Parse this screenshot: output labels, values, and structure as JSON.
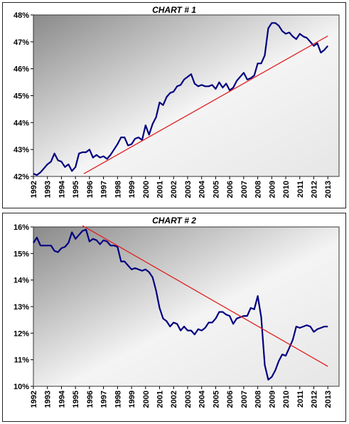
{
  "chart_data": [
    {
      "type": "line",
      "title": "CHART # 1",
      "x_ticks": [
        "1992",
        "1993",
        "1994",
        "1995",
        "1996",
        "1997",
        "1998",
        "1999",
        "2000",
        "2001",
        "2002",
        "2003",
        "2004",
        "2005",
        "2006",
        "2007",
        "2008",
        "2009",
        "2010",
        "2011",
        "2012",
        "2013"
      ],
      "y_ticks": [
        "42%",
        "43%",
        "44%",
        "45%",
        "46%",
        "47%",
        "48%"
      ],
      "ylim": [
        42,
        48
      ],
      "xlim": [
        1992,
        2013.8
      ],
      "grid": false,
      "colors": {
        "series": "#000080",
        "trend": "#e02020"
      },
      "series": [
        {
          "x": [
            1992.0,
            1992.25,
            1992.5,
            1992.75,
            1993.0,
            1993.25,
            1993.5,
            1993.75,
            1994.0,
            1994.25,
            1994.5,
            1994.75,
            1995.0,
            1995.25,
            1995.5,
            1995.75,
            1996.0,
            1996.25,
            1996.5,
            1996.75,
            1997.0,
            1997.25,
            1997.5,
            1997.75,
            1998.0,
            1998.25,
            1998.5,
            1998.75,
            1999.0,
            1999.25,
            1999.5,
            1999.75,
            2000.0,
            2000.25,
            2000.5,
            2000.75,
            2001.0,
            2001.25,
            2001.5,
            2001.75,
            2002.0,
            2002.25,
            2002.5,
            2002.75,
            2003.0,
            2003.25,
            2003.5,
            2003.75,
            2004.0,
            2004.25,
            2004.5,
            2004.75,
            2005.0,
            2005.25,
            2005.5,
            2005.75,
            2006.0,
            2006.25,
            2006.5,
            2006.75,
            2007.0,
            2007.25,
            2007.5,
            2007.75,
            2008.0,
            2008.25,
            2008.5,
            2008.75,
            2009.0,
            2009.25,
            2009.5,
            2009.75,
            2010.0,
            2010.25,
            2010.5,
            2010.75,
            2011.0,
            2011.25,
            2011.5,
            2011.75,
            2012.0,
            2012.25,
            2012.5,
            2012.75,
            2013.0
          ],
          "y": [
            42.1,
            42.05,
            42.15,
            42.3,
            42.45,
            42.55,
            42.85,
            42.6,
            42.55,
            42.35,
            42.45,
            42.2,
            42.35,
            42.85,
            42.9,
            42.9,
            43.0,
            42.7,
            42.8,
            42.7,
            42.75,
            42.65,
            42.8,
            43.0,
            43.2,
            43.45,
            43.45,
            43.15,
            43.2,
            43.4,
            43.45,
            43.35,
            43.9,
            43.55,
            43.95,
            44.2,
            44.75,
            44.65,
            44.95,
            45.1,
            45.15,
            45.35,
            45.4,
            45.6,
            45.7,
            45.8,
            45.45,
            45.35,
            45.4,
            45.35,
            45.35,
            45.4,
            45.25,
            45.5,
            45.3,
            45.45,
            45.2,
            45.3,
            45.55,
            45.7,
            45.85,
            45.6,
            45.65,
            45.75,
            46.2,
            46.2,
            46.5,
            47.5,
            47.7,
            47.7,
            47.6,
            47.4,
            47.3,
            47.35,
            47.2,
            47.1,
            47.3,
            47.2,
            47.15,
            47.0,
            46.85,
            46.95,
            46.6,
            46.7,
            46.85
          ]
        },
        {
          "x": [
            1995.6,
            2013.0
          ],
          "y": [
            42.1,
            47.22
          ]
        }
      ]
    },
    {
      "type": "line",
      "title": "CHART # 2",
      "x_ticks": [
        "1992",
        "1993",
        "1994",
        "1995",
        "1996",
        "1997",
        "1998",
        "1999",
        "2000",
        "2001",
        "2002",
        "2003",
        "2004",
        "2005",
        "2006",
        "2007",
        "2008",
        "2009",
        "2010",
        "2011",
        "2012",
        "2013"
      ],
      "y_ticks": [
        "10%",
        "11%",
        "12%",
        "13%",
        "14%",
        "15%",
        "16%"
      ],
      "ylim": [
        10,
        16
      ],
      "xlim": [
        1992,
        2013.8
      ],
      "grid": false,
      "colors": {
        "series": "#000080",
        "trend": "#e02020"
      },
      "series": [
        {
          "x": [
            1992.0,
            1992.25,
            1992.5,
            1992.75,
            1993.0,
            1993.25,
            1993.5,
            1993.75,
            1994.0,
            1994.25,
            1994.5,
            1994.75,
            1995.0,
            1995.25,
            1995.5,
            1995.75,
            1996.0,
            1996.25,
            1996.5,
            1996.75,
            1997.0,
            1997.25,
            1997.5,
            1997.75,
            1998.0,
            1998.25,
            1998.5,
            1998.75,
            1999.0,
            1999.25,
            1999.5,
            1999.75,
            2000.0,
            2000.25,
            2000.5,
            2000.75,
            2001.0,
            2001.25,
            2001.5,
            2001.75,
            2002.0,
            2002.25,
            2002.5,
            2002.75,
            2003.0,
            2003.25,
            2003.5,
            2003.75,
            2004.0,
            2004.25,
            2004.5,
            2004.75,
            2005.0,
            2005.25,
            2005.5,
            2005.75,
            2006.0,
            2006.25,
            2006.5,
            2006.75,
            2007.0,
            2007.25,
            2007.5,
            2007.75,
            2008.0,
            2008.25,
            2008.5,
            2008.75,
            2009.0,
            2009.25,
            2009.5,
            2009.75,
            2010.0,
            2010.25,
            2010.5,
            2010.75,
            2011.0,
            2011.25,
            2011.5,
            2011.75,
            2012.0,
            2012.25,
            2012.5,
            2012.75,
            2013.0
          ],
          "y": [
            15.4,
            15.6,
            15.3,
            15.3,
            15.3,
            15.3,
            15.1,
            15.05,
            15.2,
            15.25,
            15.4,
            15.8,
            15.55,
            15.7,
            15.85,
            15.9,
            15.45,
            15.55,
            15.5,
            15.35,
            15.5,
            15.45,
            15.3,
            15.3,
            15.25,
            14.7,
            14.7,
            14.55,
            14.4,
            14.45,
            14.4,
            14.35,
            14.4,
            14.3,
            14.1,
            13.6,
            12.95,
            12.55,
            12.45,
            12.25,
            12.4,
            12.35,
            12.1,
            12.25,
            12.1,
            12.1,
            11.95,
            12.15,
            12.1,
            12.2,
            12.4,
            12.4,
            12.55,
            12.8,
            12.8,
            12.7,
            12.65,
            12.35,
            12.55,
            12.6,
            12.65,
            12.65,
            12.95,
            12.9,
            13.4,
            12.6,
            10.8,
            10.25,
            10.35,
            10.6,
            10.95,
            11.2,
            11.15,
            11.45,
            11.75,
            12.25,
            12.2,
            12.25,
            12.3,
            12.25,
            12.05,
            12.15,
            12.2,
            12.25,
            12.25
          ]
        },
        {
          "x": [
            1995.5,
            2013.0
          ],
          "y": [
            16.05,
            10.75
          ]
        }
      ]
    }
  ]
}
